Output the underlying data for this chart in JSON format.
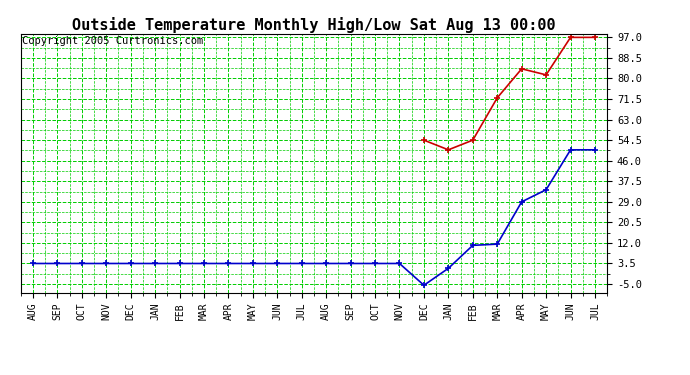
{
  "title": "Outside Temperature Monthly High/Low Sat Aug 13 00:00",
  "copyright": "Copyright 2005 Curtronics.com",
  "x_labels": [
    "AUG",
    "SEP",
    "OCT",
    "NOV",
    "DEC",
    "JAN",
    "FEB",
    "MAR",
    "APR",
    "MAY",
    "JUN",
    "JUL",
    "AUG",
    "SEP",
    "OCT",
    "NOV",
    "DEC",
    "JAN",
    "FEB",
    "MAR",
    "APR",
    "MAY",
    "JUN",
    "JUL"
  ],
  "high_values": [
    null,
    null,
    null,
    null,
    null,
    null,
    null,
    null,
    null,
    null,
    null,
    null,
    null,
    null,
    null,
    null,
    54.5,
    50.5,
    54.5,
    72.0,
    84.0,
    81.5,
    97.0,
    97.0
  ],
  "low_values": [
    3.5,
    3.5,
    3.5,
    3.5,
    3.5,
    3.5,
    3.5,
    3.5,
    3.5,
    3.5,
    3.5,
    3.5,
    3.5,
    3.5,
    3.5,
    3.5,
    -5.5,
    1.5,
    11.0,
    11.5,
    29.0,
    34.0,
    50.5,
    50.5
  ],
  "yticks": [
    -5.0,
    3.5,
    12.0,
    20.5,
    29.0,
    37.5,
    46.0,
    54.5,
    63.0,
    71.5,
    80.0,
    88.5,
    97.0
  ],
  "ymin": -5.0,
  "ymax": 97.0,
  "high_color": "#cc0000",
  "low_color": "#0000cc",
  "bg_color": "#ffffff",
  "plot_bg_color": "#ffffff",
  "grid_color": "#00cc00",
  "title_fontsize": 11,
  "copyright_fontsize": 7.5
}
